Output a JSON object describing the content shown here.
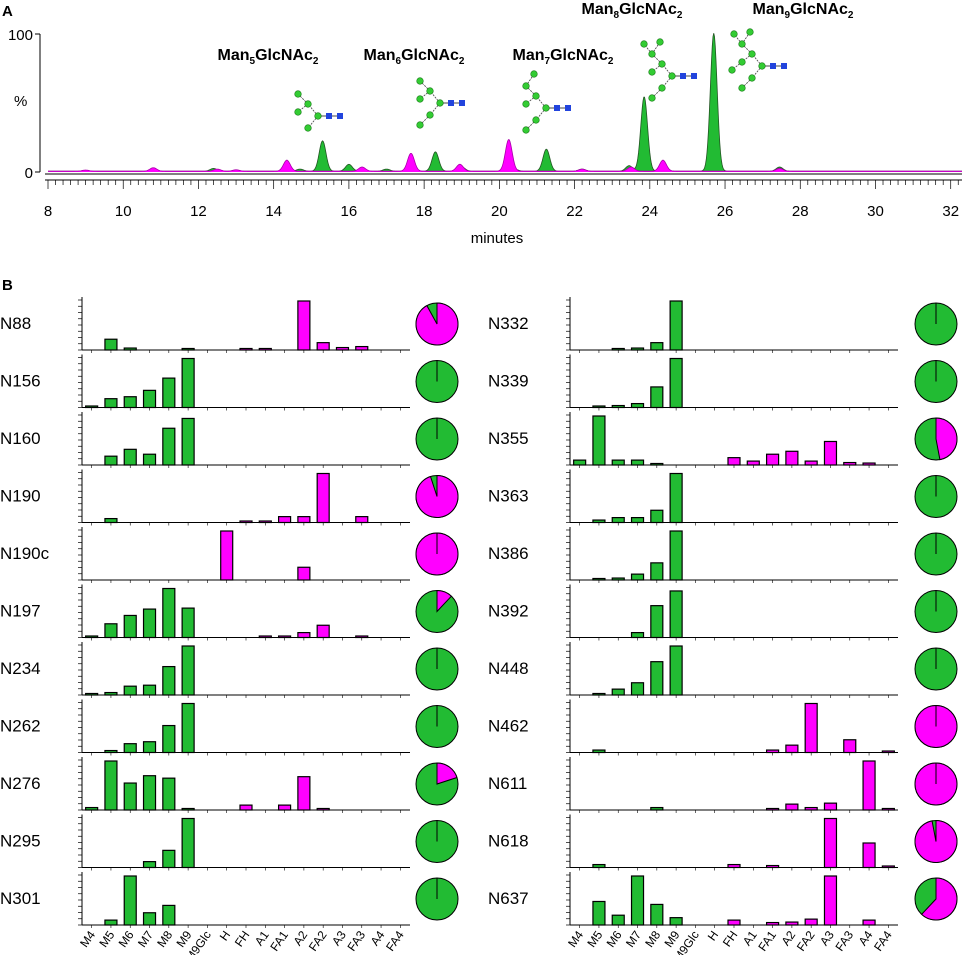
{
  "panel_a_label": "A",
  "panel_b_label": "B",
  "colors": {
    "high_mannose": "#22bb33",
    "complex": "#ff00ff",
    "axis": "#000000",
    "glcnac": "#2244dd",
    "mannose": "#33cc33"
  },
  "chart_data": [
    {
      "type": "line",
      "panel": "A",
      "xlabel": "minutes",
      "ylabel": "%",
      "xlim": [
        8,
        32.3
      ],
      "ylim": [
        0,
        100
      ],
      "x_ticks": [
        "8",
        "10",
        "12",
        "14",
        "16",
        "18",
        "20",
        "22",
        "24",
        "26",
        "28",
        "30",
        "32"
      ],
      "y_ticks": [
        "100",
        "0"
      ],
      "series": [
        {
          "name": "green trace",
          "color": "#22bb33",
          "peaks": [
            [
              10.8,
              1.5
            ],
            [
              12.4,
              2
            ],
            [
              14.7,
              1.5
            ],
            [
              15.3,
              22
            ],
            [
              16.0,
              5
            ],
            [
              17.0,
              1.5
            ],
            [
              18.3,
              14
            ],
            [
              19.0,
              3
            ],
            [
              20.4,
              1.5
            ],
            [
              21.25,
              16
            ],
            [
              22.2,
              1.5
            ],
            [
              23.45,
              4
            ],
            [
              23.85,
              54
            ],
            [
              24.4,
              2.5
            ],
            [
              25.7,
              100
            ],
            [
              27.45,
              3
            ]
          ]
        },
        {
          "name": "magenta trace",
          "color": "#ff00ff",
          "peaks": [
            [
              9.0,
              0.8
            ],
            [
              10.8,
              2.5
            ],
            [
              12.5,
              1.5
            ],
            [
              13.0,
              1
            ],
            [
              14.35,
              8
            ],
            [
              16.35,
              3
            ],
            [
              17.65,
              13
            ],
            [
              18.95,
              5
            ],
            [
              20.25,
              23
            ],
            [
              22.2,
              1.5
            ],
            [
              23.5,
              3
            ],
            [
              24.35,
              8
            ],
            [
              27.45,
              2
            ]
          ]
        }
      ],
      "peak_labels": [
        {
          "prefix": "Man",
          "sub1": "5",
          "mid": "GlcNAc",
          "sub2": "2"
        },
        {
          "prefix": "Man",
          "sub1": "6",
          "mid": "GlcNAc",
          "sub2": "2"
        },
        {
          "prefix": "Man",
          "sub1": "7",
          "mid": "GlcNAc",
          "sub2": "2"
        },
        {
          "prefix": "Man",
          "sub1": "8",
          "mid": "GlcNAc",
          "sub2": "2"
        },
        {
          "prefix": "Man",
          "sub1": "9",
          "mid": "GlcNAc",
          "sub2": "2"
        }
      ]
    },
    {
      "type": "bar",
      "panel": "B",
      "categories": [
        "M4",
        "M5",
        "M6",
        "M7",
        "M8",
        "M9",
        "M9Glc",
        "H",
        "FH",
        "A1",
        "FA1",
        "A2",
        "FA2",
        "A3",
        "FA3",
        "A4",
        "FA4"
      ],
      "category_colors": [
        "green",
        "green",
        "green",
        "green",
        "green",
        "green",
        "green",
        "magenta",
        "magenta",
        "magenta",
        "magenta",
        "magenta",
        "magenta",
        "magenta",
        "magenta",
        "magenta",
        "magenta"
      ],
      "sites_left": [
        {
          "name": "N88",
          "values": [
            0,
            22,
            4,
            0,
            0,
            2,
            0,
            0,
            2,
            3,
            0,
            100,
            15,
            5,
            7,
            0,
            0
          ],
          "pie_complex": 0.92
        },
        {
          "name": "N156",
          "values": [
            2,
            18,
            22,
            35,
            60,
            100,
            0,
            0,
            0,
            0,
            0,
            0,
            0,
            0,
            0,
            0,
            0
          ],
          "pie_complex": 0.0
        },
        {
          "name": "N160",
          "values": [
            0,
            18,
            32,
            22,
            75,
            95,
            0,
            0,
            0,
            0,
            0,
            0,
            0,
            0,
            0,
            0,
            0
          ],
          "pie_complex": 0.0
        },
        {
          "name": "N190",
          "values": [
            0,
            8,
            0,
            0,
            0,
            0,
            0,
            0,
            2,
            2,
            12,
            12,
            100,
            0,
            12,
            0,
            0
          ],
          "pie_complex": 0.95
        },
        {
          "name": "N190c",
          "values": [
            0,
            0,
            0,
            0,
            0,
            0,
            0,
            100,
            0,
            0,
            0,
            26,
            0,
            0,
            0,
            0,
            0
          ],
          "pie_complex": 1.0
        },
        {
          "name": "N197",
          "values": [
            2,
            28,
            45,
            58,
            100,
            60,
            0,
            0,
            0,
            3,
            2,
            10,
            25,
            0,
            2,
            0,
            0
          ],
          "pie_complex": 0.12
        },
        {
          "name": "N234",
          "values": [
            2,
            5,
            18,
            20,
            58,
            100,
            0,
            0,
            0,
            0,
            0,
            0,
            0,
            0,
            0,
            0,
            0
          ],
          "pie_complex": 0.0
        },
        {
          "name": "N262",
          "values": [
            0,
            4,
            18,
            22,
            55,
            100,
            0,
            0,
            0,
            0,
            0,
            0,
            0,
            0,
            0,
            0,
            0
          ],
          "pie_complex": 0.0
        },
        {
          "name": "N276",
          "values": [
            5,
            100,
            55,
            70,
            65,
            2,
            0,
            0,
            10,
            0,
            10,
            68,
            3,
            0,
            0,
            0,
            0
          ],
          "pie_complex": 0.2
        },
        {
          "name": "N295",
          "values": [
            0,
            0,
            0,
            12,
            35,
            100,
            0,
            0,
            0,
            0,
            0,
            0,
            0,
            0,
            0,
            0,
            0
          ],
          "pie_complex": 0.0
        },
        {
          "name": "N301",
          "values": [
            0,
            10,
            100,
            25,
            40,
            0,
            0,
            0,
            0,
            0,
            0,
            0,
            0,
            0,
            0,
            0,
            0
          ],
          "pie_complex": 0.0
        }
      ],
      "sites_right": [
        {
          "name": "N332",
          "values": [
            0,
            0,
            3,
            4,
            15,
            100,
            0,
            0,
            0,
            0,
            0,
            0,
            0,
            0,
            0,
            0,
            0
          ],
          "pie_complex": 0.0
        },
        {
          "name": "N339",
          "values": [
            0,
            3,
            4,
            8,
            42,
            100,
            0,
            0,
            0,
            0,
            0,
            0,
            0,
            0,
            0,
            0,
            0
          ],
          "pie_complex": 0.0
        },
        {
          "name": "N355",
          "values": [
            10,
            100,
            10,
            10,
            3,
            0,
            0,
            0,
            15,
            8,
            22,
            28,
            8,
            48,
            5,
            4,
            0
          ],
          "pie_complex": 0.47
        },
        {
          "name": "N363",
          "values": [
            0,
            5,
            10,
            10,
            25,
            100,
            0,
            0,
            0,
            0,
            0,
            0,
            0,
            0,
            0,
            0,
            0
          ],
          "pie_complex": 0.0
        },
        {
          "name": "N386",
          "values": [
            0,
            3,
            4,
            12,
            35,
            100,
            0,
            0,
            0,
            0,
            0,
            0,
            0,
            0,
            0,
            0,
            0
          ],
          "pie_complex": 0.0
        },
        {
          "name": "N392",
          "values": [
            0,
            0,
            0,
            10,
            65,
            95,
            0,
            0,
            0,
            0,
            0,
            0,
            0,
            0,
            0,
            0,
            0
          ],
          "pie_complex": 0.0
        },
        {
          "name": "N448",
          "values": [
            0,
            3,
            12,
            25,
            68,
            100,
            0,
            0,
            0,
            0,
            0,
            0,
            0,
            0,
            0,
            0,
            0
          ],
          "pie_complex": 0.0
        },
        {
          "name": "N462",
          "values": [
            0,
            5,
            0,
            0,
            0,
            0,
            0,
            0,
            0,
            0,
            5,
            15,
            100,
            0,
            26,
            0,
            2
          ],
          "pie_complex": 1.0
        },
        {
          "name": "N611",
          "values": [
            0,
            0,
            0,
            0,
            5,
            0,
            0,
            0,
            0,
            0,
            3,
            12,
            5,
            14,
            0,
            100,
            3
          ],
          "pie_complex": 1.0
        },
        {
          "name": "N618",
          "values": [
            0,
            6,
            0,
            0,
            0,
            0,
            0,
            0,
            6,
            0,
            4,
            0,
            0,
            100,
            0,
            50,
            3
          ],
          "pie_complex": 0.97
        },
        {
          "name": "N637",
          "values": [
            0,
            48,
            20,
            100,
            42,
            15,
            0,
            0,
            10,
            0,
            5,
            6,
            12,
            100,
            0,
            10,
            0
          ],
          "pie_complex": 0.62
        }
      ]
    }
  ]
}
